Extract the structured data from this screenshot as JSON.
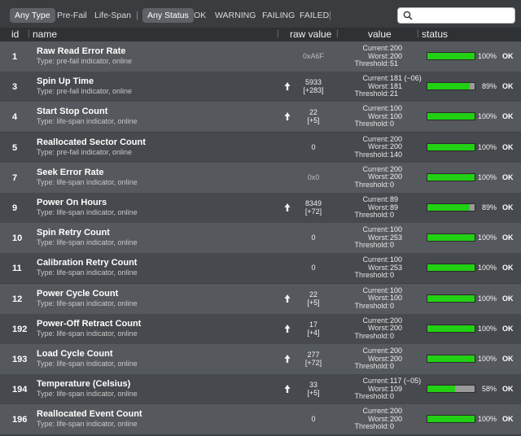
{
  "filters": {
    "type_items": [
      "Any Type",
      "Pre-Fail",
      "Life-Span"
    ],
    "status_items": [
      "Any Status",
      "OK",
      "WARNING",
      "FAILING",
      "FAILED"
    ],
    "active_type": "Any Type",
    "active_status": "Any Status",
    "separator": "|"
  },
  "search": {
    "value": "",
    "icon": "search-icon"
  },
  "columns": {
    "id": "id",
    "name": "name",
    "raw": "raw value",
    "value": "value",
    "status": "status"
  },
  "value_labels": {
    "current": "Current:",
    "worst": "Worst:",
    "threshold": "Threshold:"
  },
  "colors": {
    "bar_fill": "#22d014",
    "bar_empty": "#9a9a9a"
  },
  "rows": [
    {
      "id": "1",
      "name": "Raw Read Error Rate",
      "type": "Type: pre-fail indicator, online",
      "raw": "0xA6F",
      "raw_delta": "",
      "trend": false,
      "current": "200",
      "worst": "200",
      "threshold": "51",
      "percent": 1.0,
      "pct_label": "100%",
      "status": "OK"
    },
    {
      "id": "3",
      "name": "Spin Up Time",
      "type": "Type: pre-fail indicator, online",
      "raw": "5933",
      "raw_delta": "[+283]",
      "trend": true,
      "current": "181 (−06)",
      "worst": "181",
      "threshold": "21",
      "percent": 0.89,
      "pct_label": "89%",
      "status": "OK"
    },
    {
      "id": "4",
      "name": "Start Stop Count",
      "type": "Type: life-span indicator, online",
      "raw": "22",
      "raw_delta": "[+5]",
      "trend": true,
      "current": "100",
      "worst": "100",
      "threshold": "0",
      "percent": 1.0,
      "pct_label": "100%",
      "status": "OK"
    },
    {
      "id": "5",
      "name": "Reallocated Sector Count",
      "type": "Type: pre-fail indicator, online",
      "raw": "0",
      "raw_delta": "",
      "trend": false,
      "current": "200",
      "worst": "200",
      "threshold": "140",
      "percent": 1.0,
      "pct_label": "100%",
      "status": "OK"
    },
    {
      "id": "7",
      "name": "Seek Error Rate",
      "type": "Type: life-span indicator, online",
      "raw": "0x0",
      "raw_delta": "",
      "trend": false,
      "current": "200",
      "worst": "200",
      "threshold": "0",
      "percent": 1.0,
      "pct_label": "100%",
      "status": "OK"
    },
    {
      "id": "9",
      "name": "Power On Hours",
      "type": "Type: life-span indicator, online",
      "raw": "8349",
      "raw_delta": "[+72]",
      "trend": true,
      "current": "89",
      "worst": "89",
      "threshold": "0",
      "percent": 0.89,
      "pct_label": "89%",
      "status": "OK"
    },
    {
      "id": "10",
      "name": "Spin Retry Count",
      "type": "Type: life-span indicator, online",
      "raw": "0",
      "raw_delta": "",
      "trend": false,
      "current": "100",
      "worst": "253",
      "threshold": "0",
      "percent": 1.0,
      "pct_label": "100%",
      "status": "OK"
    },
    {
      "id": "11",
      "name": "Calibration Retry Count",
      "type": "Type: life-span indicator, online",
      "raw": "0",
      "raw_delta": "",
      "trend": false,
      "current": "100",
      "worst": "253",
      "threshold": "0",
      "percent": 1.0,
      "pct_label": "100%",
      "status": "OK"
    },
    {
      "id": "12",
      "name": "Power Cycle Count",
      "type": "Type: life-span indicator, online",
      "raw": "22",
      "raw_delta": "[+5]",
      "trend": true,
      "current": "100",
      "worst": "100",
      "threshold": "0",
      "percent": 1.0,
      "pct_label": "100%",
      "status": "OK"
    },
    {
      "id": "192",
      "name": "Power-Off Retract Count",
      "type": "Type: life-span indicator, online",
      "raw": "17",
      "raw_delta": "[+4]",
      "trend": true,
      "current": "200",
      "worst": "200",
      "threshold": "0",
      "percent": 1.0,
      "pct_label": "100%",
      "status": "OK"
    },
    {
      "id": "193",
      "name": "Load Cycle Count",
      "type": "Type: life-span indicator, online",
      "raw": "277",
      "raw_delta": "[+72]",
      "trend": true,
      "current": "200",
      "worst": "200",
      "threshold": "0",
      "percent": 1.0,
      "pct_label": "100%",
      "status": "OK"
    },
    {
      "id": "194",
      "name": "Temperature (Celsius)",
      "type": "Type: life-span indicator, online",
      "raw": "33",
      "raw_delta": "[+5]",
      "trend": true,
      "current": "117 (−05)",
      "worst": "109",
      "threshold": "0",
      "percent": 0.58,
      "pct_label": "58%",
      "status": "OK"
    },
    {
      "id": "196",
      "name": "Reallocated Event Count",
      "type": "Type: life-span indicator, online",
      "raw": "0",
      "raw_delta": "",
      "trend": false,
      "current": "200",
      "worst": "200",
      "threshold": "0",
      "percent": 1.0,
      "pct_label": "100%",
      "status": "OK"
    }
  ]
}
